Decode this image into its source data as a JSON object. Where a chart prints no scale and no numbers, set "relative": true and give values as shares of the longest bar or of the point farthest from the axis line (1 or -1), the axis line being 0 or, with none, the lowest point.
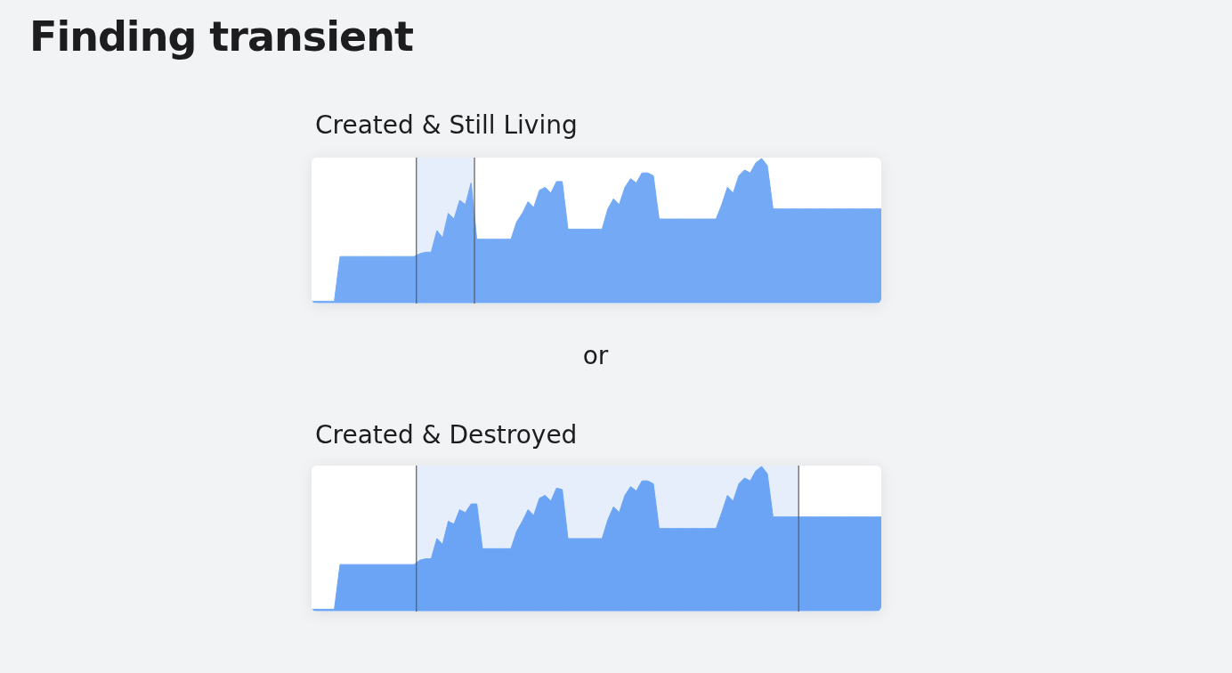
{
  "chart_data": [
    {
      "type": "area",
      "title": "Finding transient",
      "subtitle": "Created & Still Living",
      "annotations": [
        "or"
      ],
      "relative": true,
      "categories": [
        null,
        null,
        null,
        null,
        null,
        null,
        null,
        null,
        null,
        null,
        null,
        null,
        null,
        null,
        null,
        null,
        null,
        null,
        null,
        null,
        null,
        null,
        null,
        null,
        null,
        null,
        null,
        null,
        null,
        null,
        null,
        null,
        null,
        null,
        null,
        null,
        null,
        null,
        null,
        null,
        null,
        null,
        null,
        null,
        null,
        null,
        null,
        null,
        null,
        null,
        null,
        null,
        null,
        null,
        null,
        null,
        null,
        null,
        null,
        null,
        null,
        null,
        null,
        null,
        null,
        null,
        null,
        null,
        null,
        null,
        null,
        null,
        null,
        null,
        null,
        null,
        null,
        null,
        null,
        null,
        null,
        null,
        null,
        null,
        null,
        null,
        null,
        null,
        null,
        null,
        null,
        null,
        null,
        null,
        null,
        null,
        null,
        null,
        null,
        null,
        null
      ],
      "series": [
        {
          "color": "#74a9f5",
          "values": [
            0.01,
            0.01,
            0.01,
            0.01,
            0.01,
            0.32,
            0.32,
            0.32,
            0.32,
            0.32,
            0.32,
            0.32,
            0.32,
            0.32,
            0.32,
            0.32,
            0.32,
            0.32,
            0.32,
            0.34,
            0.35,
            0.35,
            0.5,
            0.45,
            0.62,
            0.58,
            0.71,
            0.68,
            0.83,
            0.44,
            0.44,
            0.44,
            0.44,
            0.44,
            0.44,
            0.44,
            0.56,
            0.62,
            0.7,
            0.66,
            0.78,
            0.8,
            0.76,
            0.84,
            0.84,
            0.51,
            0.51,
            0.51,
            0.51,
            0.51,
            0.51,
            0.51,
            0.65,
            0.72,
            0.68,
            0.8,
            0.86,
            0.83,
            0.9,
            0.9,
            0.88,
            0.58,
            0.58,
            0.58,
            0.58,
            0.58,
            0.58,
            0.58,
            0.58,
            0.58,
            0.58,
            0.58,
            0.68,
            0.8,
            0.76,
            0.88,
            0.92,
            0.9,
            0.97,
            1.0,
            0.95,
            0.65,
            0.65,
            0.65,
            0.65,
            0.65,
            0.65,
            0.65,
            0.65,
            0.65,
            0.65,
            0.65,
            0.65,
            0.65,
            0.65,
            0.65,
            0.65,
            0.65,
            0.65,
            0.65,
            0.65
          ]
        }
      ]
    },
    {
      "type": "area",
      "title": "Created & Destroyed",
      "relative": true,
      "categories": [
        null,
        null,
        null,
        null,
        null,
        null,
        null,
        null,
        null,
        null,
        null,
        null,
        null,
        null,
        null,
        null,
        null,
        null,
        null,
        null,
        null,
        null,
        null,
        null,
        null,
        null,
        null,
        null,
        null,
        null,
        null,
        null,
        null,
        null,
        null,
        null,
        null,
        null,
        null,
        null,
        null,
        null,
        null,
        null,
        null,
        null,
        null,
        null,
        null,
        null,
        null,
        null,
        null,
        null,
        null,
        null,
        null,
        null,
        null,
        null,
        null,
        null,
        null,
        null,
        null,
        null,
        null,
        null,
        null,
        null,
        null,
        null,
        null,
        null,
        null,
        null,
        null,
        null,
        null,
        null,
        null,
        null,
        null,
        null,
        null,
        null,
        null,
        null,
        null,
        null,
        null,
        null,
        null,
        null,
        null,
        null,
        null,
        null,
        null,
        null,
        null
      ],
      "series": [
        {
          "color": "#6ba4f4",
          "values": [
            0.01,
            0.01,
            0.01,
            0.01,
            0.01,
            0.32,
            0.32,
            0.32,
            0.32,
            0.32,
            0.32,
            0.32,
            0.32,
            0.32,
            0.32,
            0.32,
            0.32,
            0.32,
            0.32,
            0.35,
            0.36,
            0.36,
            0.5,
            0.46,
            0.62,
            0.6,
            0.7,
            0.68,
            0.74,
            0.74,
            0.43,
            0.43,
            0.43,
            0.43,
            0.43,
            0.43,
            0.55,
            0.62,
            0.7,
            0.66,
            0.78,
            0.8,
            0.76,
            0.85,
            0.84,
            0.5,
            0.5,
            0.5,
            0.5,
            0.5,
            0.5,
            0.5,
            0.63,
            0.72,
            0.68,
            0.8,
            0.86,
            0.83,
            0.9,
            0.9,
            0.88,
            0.57,
            0.57,
            0.57,
            0.57,
            0.57,
            0.57,
            0.57,
            0.57,
            0.57,
            0.57,
            0.57,
            0.68,
            0.8,
            0.76,
            0.88,
            0.92,
            0.9,
            0.97,
            1.0,
            0.95,
            0.65,
            0.65,
            0.65,
            0.65,
            0.65,
            0.65,
            0.65,
            0.65,
            0.65,
            0.65,
            0.65,
            0.65,
            0.65,
            0.65,
            0.65,
            0.65,
            0.65,
            0.65,
            0.65,
            0.65
          ]
        }
      ]
    }
  ]
}
